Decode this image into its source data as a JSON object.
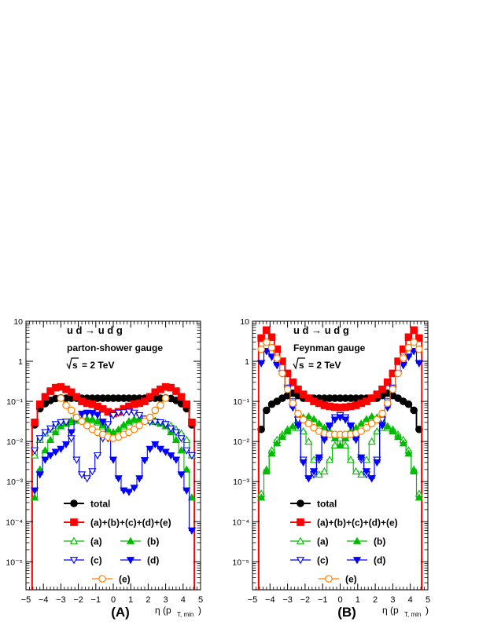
{
  "chart_data": [
    {
      "type": "line",
      "panel_label": "(A)",
      "process": "u d → u d g",
      "gauge": "parton-shower gauge",
      "energy_sqrt": "s",
      "energy_value": "= 2 TeV",
      "xlabel": "η (p",
      "xlabel_sub": "T, min",
      "xlabel_close": ")",
      "log_y": true,
      "xlim": [
        -5,
        5
      ],
      "ylim": [
        2e-06,
        10
      ],
      "x_ticks": [
        "−5",
        "−4",
        "−3",
        "−2",
        "−1",
        "0",
        "1",
        "2",
        "3",
        "4",
        "5"
      ],
      "y_ticks": [
        "10⁻⁵",
        "10⁻⁴",
        "10⁻³",
        "10⁻²",
        "10⁻¹",
        "1",
        "10"
      ],
      "grid": false,
      "x": [
        -4.5,
        -4.2,
        -3.9,
        -3.6,
        -3.3,
        -3.0,
        -2.7,
        -2.4,
        -2.1,
        -1.8,
        -1.5,
        -1.2,
        -0.9,
        -0.6,
        -0.3,
        0.0,
        0.3,
        0.6,
        0.9,
        1.2,
        1.5,
        1.8,
        2.1,
        2.4,
        2.7,
        3.0,
        3.3,
        3.6,
        3.9,
        4.2,
        4.5
      ],
      "series": [
        {
          "name": "total",
          "color": "#000000",
          "marker": "circle-filled",
          "values": [
            0.026,
            0.066,
            0.088,
            0.106,
            0.118,
            0.122,
            0.12,
            0.12,
            0.12,
            0.12,
            0.12,
            0.12,
            0.12,
            0.12,
            0.12,
            0.12,
            0.12,
            0.12,
            0.12,
            0.12,
            0.12,
            0.12,
            0.12,
            0.12,
            0.12,
            0.122,
            0.118,
            0.106,
            0.088,
            0.066,
            0.026
          ]
        },
        {
          "name": "(a)+(b)+(c)+(d)+(e)",
          "color": "#ff0000",
          "marker": "square-filled",
          "values": [
            0.03,
            0.085,
            0.13,
            0.18,
            0.22,
            0.23,
            0.2,
            0.17,
            0.13,
            0.1,
            0.09,
            0.085,
            0.075,
            0.065,
            0.055,
            0.05,
            0.055,
            0.065,
            0.075,
            0.085,
            0.09,
            0.1,
            0.13,
            0.17,
            0.2,
            0.23,
            0.22,
            0.18,
            0.13,
            0.085,
            0.03
          ]
        },
        {
          "name": "(a)",
          "color": "#00bb00",
          "marker": "triangle-up-open",
          "values": [
            0.0045,
            0.011,
            0.016,
            0.02,
            0.025,
            0.028,
            0.028,
            0.031,
            0.033,
            0.034,
            0.035,
            0.034,
            0.03,
            0.024,
            0.018,
            0.015,
            0.018,
            0.024,
            0.03,
            0.034,
            0.035,
            0.034,
            0.033,
            0.031,
            0.028,
            0.028,
            0.025,
            0.02,
            0.016,
            0.011,
            0.0045
          ]
        },
        {
          "name": "(b)",
          "color": "#00bb00",
          "marker": "triangle-up-filled",
          "values": [
            0.0004,
            0.002,
            0.006,
            0.011,
            0.017,
            0.024,
            0.029,
            0.033,
            0.035,
            0.036,
            0.037,
            0.036,
            0.032,
            0.026,
            0.02,
            0.017,
            0.02,
            0.026,
            0.032,
            0.036,
            0.037,
            0.036,
            0.035,
            0.033,
            0.029,
            0.024,
            0.017,
            0.011,
            0.006,
            0.002,
            0.0004
          ]
        },
        {
          "name": "(c)",
          "color": "#0000ff",
          "marker": "triangle-down-open",
          "values": [
            0.006,
            0.012,
            0.017,
            0.021,
            0.027,
            0.03,
            0.031,
            0.012,
            0.0035,
            0.0015,
            0.0012,
            0.0018,
            0.0045,
            0.012,
            0.027,
            0.045,
            0.052,
            0.053,
            0.055,
            0.052,
            0.045,
            0.037,
            0.031,
            0.031,
            0.03,
            0.027,
            0.021,
            0.017,
            0.012,
            0.006,
            0.0045
          ]
        },
        {
          "name": "(d)",
          "color": "#0000ff",
          "marker": "triangle-down-filled",
          "values": [
            0.0006,
            0.0015,
            0.0035,
            0.0045,
            0.0055,
            0.0065,
            0.0085,
            0.017,
            0.038,
            0.049,
            0.052,
            0.051,
            0.046,
            0.031,
            0.012,
            0.0035,
            0.0012,
            0.0006,
            0.00055,
            0.0007,
            0.0012,
            0.0034,
            0.0065,
            0.0085,
            0.0065,
            0.0055,
            0.0045,
            0.0035,
            0.0015,
            0.0006,
            6e-05
          ]
        }
      ],
      "legend": [
        {
          "label": "total",
          "series": 0
        },
        {
          "label": "(a)+(b)+(c)+(d)+(e)",
          "series": 1
        },
        {
          "label": "(a)",
          "series": 2
        },
        {
          "label": "(b)",
          "series": 3
        },
        {
          "label": "(c)",
          "series": 4
        },
        {
          "label": "(d)",
          "series": 5
        },
        {
          "label": "(e)",
          "color": "#ff8000",
          "marker": "circle-open"
        }
      ],
      "extra_series": [
        {
          "name": "(e)",
          "color": "#ff8000",
          "marker": "circle-open",
          "values": [
            null,
            null,
            null,
            null,
            null,
            0.12,
            0.08,
            0.06,
            0.04,
            0.032,
            0.025,
            0.02,
            0.017,
            0.015,
            0.013,
            0.012,
            0.013,
            0.015,
            0.017,
            0.02,
            0.025,
            0.032,
            0.04,
            0.06,
            0.08,
            0.12,
            null,
            null,
            null,
            null,
            null
          ]
        }
      ]
    },
    {
      "type": "line",
      "panel_label": "(B)",
      "process": "u d → u d g",
      "gauge": "Feynman gauge",
      "energy_sqrt": "s",
      "energy_value": "= 2 TeV",
      "xlabel": "η (p",
      "xlabel_sub": "T, min",
      "xlabel_close": ")",
      "log_y": true,
      "xlim": [
        -5,
        5
      ],
      "ylim": [
        2e-06,
        10
      ],
      "x_ticks": [
        "−5",
        "−4",
        "−3",
        "−2",
        "−1",
        "0",
        "1",
        "2",
        "3",
        "4",
        "5"
      ],
      "y_ticks": [
        "10⁻⁵",
        "10⁻⁴",
        "10⁻³",
        "10⁻²",
        "10⁻¹",
        "1",
        "10"
      ],
      "grid": false,
      "x": [
        -4.5,
        -4.2,
        -3.9,
        -3.6,
        -3.3,
        -3.0,
        -2.7,
        -2.4,
        -2.1,
        -1.8,
        -1.5,
        -1.2,
        -0.9,
        -0.6,
        -0.3,
        0.0,
        0.3,
        0.6,
        0.9,
        1.2,
        1.5,
        1.8,
        2.1,
        2.4,
        2.7,
        3.0,
        3.3,
        3.6,
        3.9,
        4.2,
        4.5
      ],
      "series": [
        {
          "name": "total",
          "color": "#000000",
          "marker": "circle-filled",
          "values": [
            0.02,
            0.06,
            0.085,
            0.1,
            0.12,
            0.14,
            0.16,
            0.14,
            0.12,
            0.12,
            0.12,
            0.12,
            0.12,
            0.12,
            0.12,
            0.12,
            0.12,
            0.12,
            0.12,
            0.12,
            0.12,
            0.12,
            0.12,
            0.14,
            0.16,
            0.14,
            0.12,
            0.1,
            0.085,
            0.06,
            0.02
          ]
        },
        {
          "name": "(a)+(b)+(c)+(d)+(e)",
          "color": "#ff0000",
          "marker": "square-filled",
          "values": [
            3.8,
            6.0,
            4.0,
            2.0,
            1.0,
            0.5,
            0.3,
            0.2,
            0.15,
            0.12,
            0.1,
            0.09,
            0.08,
            0.075,
            0.072,
            0.07,
            0.072,
            0.075,
            0.08,
            0.09,
            0.1,
            0.12,
            0.15,
            0.2,
            0.3,
            0.5,
            1.0,
            2.0,
            4.0,
            6.0,
            3.8
          ]
        },
        {
          "name": "(a)",
          "color": "#00bb00",
          "marker": "triangle-up-open",
          "values": [
            0.0005,
            0.002,
            0.006,
            0.011,
            0.015,
            0.02,
            0.022,
            0.022,
            0.018,
            0.01,
            0.0035,
            0.0015,
            0.0018,
            0.0035,
            0.008,
            0.012,
            0.008,
            0.0035,
            0.0018,
            0.0015,
            0.0035,
            0.01,
            0.018,
            0.022,
            0.022,
            0.02,
            0.015,
            0.011,
            0.006,
            0.002,
            0.0005
          ]
        },
        {
          "name": "(b)",
          "color": "#00bb00",
          "marker": "triangle-up-filled",
          "values": [
            0.0004,
            0.0018,
            0.005,
            0.009,
            0.013,
            0.018,
            0.024,
            0.034,
            0.04,
            0.042,
            0.036,
            0.028,
            0.022,
            0.018,
            0.012,
            0.008,
            0.012,
            0.018,
            0.022,
            0.028,
            0.036,
            0.042,
            0.04,
            0.034,
            0.024,
            0.018,
            0.013,
            0.009,
            0.005,
            0.0018,
            0.0004
          ]
        },
        {
          "name": "(c)",
          "color": "#0000ff",
          "marker": "triangle-down-open",
          "values": [
            0.9,
            1.8,
            1.3,
            0.8,
            0.5,
            0.22,
            0.1,
            0.035,
            0.0035,
            0.0012,
            0.0015,
            0.0035,
            0.011,
            0.025,
            0.04,
            0.045,
            0.04,
            0.025,
            0.011,
            0.0035,
            0.0015,
            0.0012,
            0.0035,
            0.035,
            0.1,
            0.22,
            0.5,
            0.8,
            1.3,
            1.8,
            0.9
          ]
        },
        {
          "name": "(d)",
          "color": "#0000ff",
          "marker": "triangle-down-filled",
          "values": [
            0.9,
            1.8,
            1.3,
            0.8,
            0.5,
            0.2,
            0.07,
            0.025,
            0.003,
            0.0012,
            0.0018,
            0.004,
            0.012,
            0.024,
            0.035,
            0.04,
            0.035,
            0.024,
            0.012,
            0.004,
            0.0018,
            0.0012,
            0.003,
            0.025,
            0.07,
            0.2,
            0.5,
            0.8,
            1.3,
            1.8,
            0.9
          ]
        }
      ],
      "legend": [
        {
          "label": "total",
          "series": 0
        },
        {
          "label": "(a)+(b)+(c)+(d)+(e)",
          "series": 1
        },
        {
          "label": "(a)",
          "series": 2
        },
        {
          "label": "(b)",
          "series": 3
        },
        {
          "label": "(c)",
          "series": 4
        },
        {
          "label": "(d)",
          "series": 5
        },
        {
          "label": "(e)",
          "color": "#ff8000",
          "marker": "circle-open"
        }
      ],
      "extra_series": [
        {
          "name": "(e)",
          "color": "#ff8000",
          "marker": "circle-open",
          "values": [
            2.0,
            3.0,
            2.2,
            1.2,
            0.5,
            0.2,
            0.09,
            0.05,
            0.035,
            0.028,
            0.022,
            0.018,
            0.016,
            0.015,
            0.015,
            0.015,
            0.015,
            0.015,
            0.016,
            0.018,
            0.022,
            0.028,
            0.035,
            0.05,
            0.09,
            0.2,
            0.5,
            1.2,
            2.2,
            3.0,
            2.0
          ]
        }
      ]
    }
  ]
}
